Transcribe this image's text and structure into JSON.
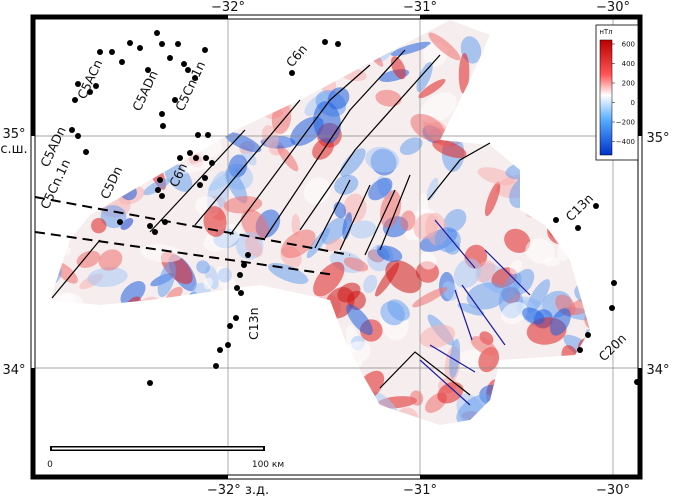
{
  "axes": {
    "top": [
      "−32°",
      "−31°",
      "−30°"
    ],
    "bottom": [
      "−32° з.д.",
      "−31°",
      "−30°"
    ],
    "left": [
      "35° с.ш.",
      "34°"
    ],
    "right": [
      "35°",
      "34°"
    ]
  },
  "anomalies": [
    "C5ACn",
    "C5ADn",
    "C5Cn.1n",
    "C6n",
    "C5ADn",
    "C5Cn.1n",
    "C5Dn",
    "C6n",
    "C13n",
    "C13n",
    "C20n"
  ],
  "colorbar": {
    "title": "нТл",
    "ticks": [
      "600",
      "400",
      "200",
      "0",
      "−200",
      "−400"
    ]
  },
  "scale_bar": {
    "start": "0",
    "end": "100 км"
  }
}
